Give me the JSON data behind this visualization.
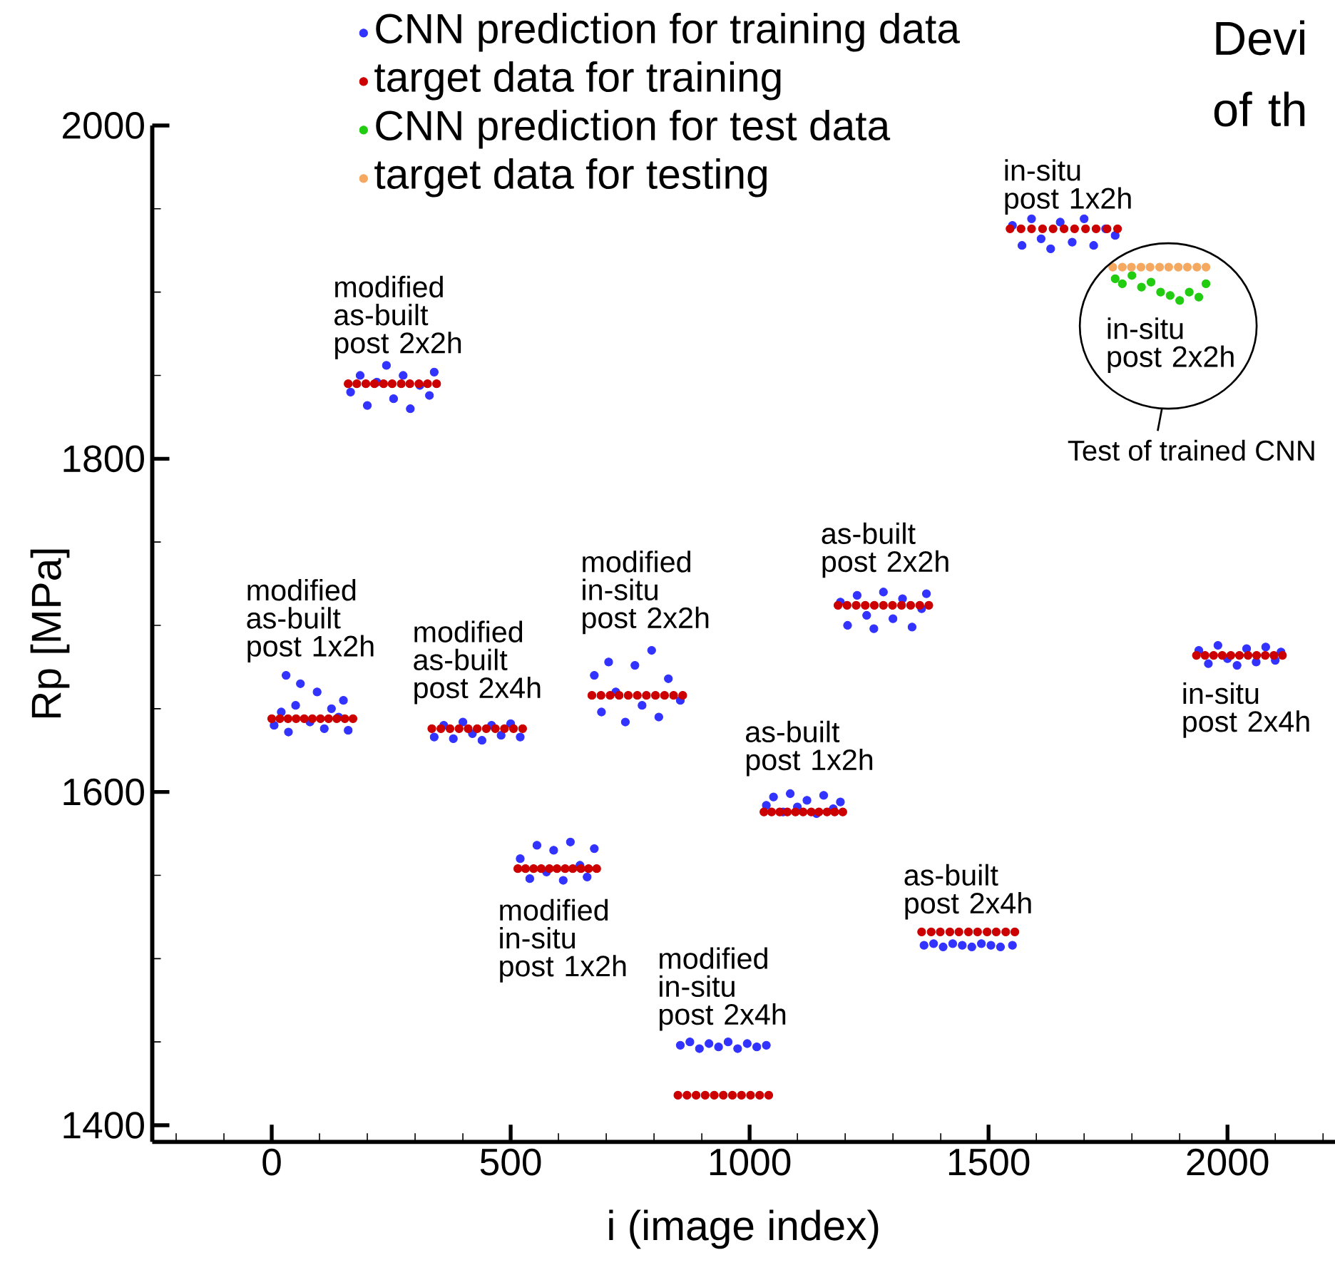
{
  "chart_data": {
    "type": "scatter",
    "title": "Devi of th",
    "xlabel": "i (image index)",
    "ylabel": "Rp [MPa]",
    "xlim": [
      -250,
      2225
    ],
    "ylim": [
      1390,
      2000
    ],
    "xticks": [
      {
        "value": -200,
        "label": null
      },
      {
        "value": -100,
        "label": null
      },
      0,
      {
        "value": 100,
        "label": null
      },
      {
        "value": 200,
        "label": null
      },
      {
        "value": 300,
        "label": null
      },
      {
        "value": 400,
        "label": null
      },
      500,
      {
        "value": 600,
        "label": null
      },
      {
        "value": 700,
        "label": null
      },
      {
        "value": 800,
        "label": null
      },
      {
        "value": 900,
        "label": null
      },
      1000,
      {
        "value": 1100,
        "label": null
      },
      {
        "value": 1200,
        "label": null
      },
      {
        "value": 1300,
        "label": null
      },
      {
        "value": 1400,
        "label": null
      },
      1500,
      {
        "value": 1600,
        "label": null
      },
      {
        "value": 1700,
        "label": null
      },
      {
        "value": 1800,
        "label": null
      },
      {
        "value": 1900,
        "label": null
      },
      2000,
      {
        "value": 2100,
        "label": null
      },
      {
        "value": 2200,
        "label": null
      }
    ],
    "yticks": [
      1400,
      {
        "value": 1450,
        "label": null
      },
      {
        "value": 1500,
        "label": null
      },
      {
        "value": 1550,
        "label": null
      },
      1600,
      {
        "value": 1650,
        "label": null
      },
      {
        "value": 1700,
        "label": null
      },
      {
        "value": 1750,
        "label": null
      },
      1800,
      {
        "value": 1850,
        "label": null
      },
      {
        "value": 1900,
        "label": null
      },
      {
        "value": 1950,
        "label": null
      },
      2000
    ],
    "legend": "top left",
    "series": [
      {
        "name": "CNN prediction for training data",
        "color": "#3333ff",
        "x": [
          5,
          20,
          35,
          50,
          60,
          80,
          95,
          110,
          125,
          140,
          160,
          30,
          150,
          165,
          185,
          200,
          220,
          240,
          255,
          275,
          290,
          310,
          330,
          340,
          340,
          360,
          380,
          400,
          420,
          440,
          460,
          480,
          500,
          520,
          520,
          540,
          555,
          575,
          590,
          610,
          625,
          645,
          660,
          675,
          675,
          690,
          705,
          720,
          740,
          760,
          775,
          795,
          810,
          830,
          855,
          855,
          875,
          895,
          915,
          935,
          955,
          975,
          995,
          1015,
          1035,
          1035,
          1050,
          1070,
          1085,
          1100,
          1120,
          1140,
          1155,
          1175,
          1190,
          1190,
          1205,
          1225,
          1245,
          1260,
          1280,
          1300,
          1320,
          1340,
          1360,
          1370,
          1365,
          1385,
          1405,
          1425,
          1445,
          1465,
          1485,
          1505,
          1525,
          1550,
          1550,
          1570,
          1590,
          1610,
          1630,
          1650,
          1675,
          1700,
          1720,
          1745,
          1765,
          1940,
          1960,
          1980,
          2000,
          2020,
          2040,
          2060,
          2080,
          2100,
          2112
        ],
        "values": [
          1640,
          1648,
          1636,
          1652,
          1665,
          1642,
          1660,
          1638,
          1650,
          1645,
          1637,
          1670,
          1655,
          1840,
          1850,
          1832,
          1846,
          1856,
          1836,
          1850,
          1830,
          1844,
          1838,
          1852,
          1633,
          1640,
          1632,
          1642,
          1635,
          1631,
          1640,
          1634,
          1641,
          1633,
          1560,
          1548,
          1568,
          1552,
          1565,
          1547,
          1570,
          1556,
          1549,
          1566,
          1670,
          1648,
          1678,
          1660,
          1642,
          1676,
          1652,
          1685,
          1645,
          1668,
          1655,
          1448,
          1450,
          1446,
          1449,
          1447,
          1450,
          1446,
          1449,
          1447,
          1448,
          1592,
          1597,
          1588,
          1599,
          1591,
          1595,
          1587,
          1598,
          1590,
          1594,
          1714,
          1700,
          1718,
          1706,
          1698,
          1720,
          1704,
          1716,
          1699,
          1710,
          1719,
          1508,
          1509,
          1507,
          1509,
          1508,
          1507,
          1509,
          1508,
          1507,
          1508,
          1940,
          1928,
          1944,
          1932,
          1926,
          1942,
          1930,
          1944,
          1928,
          1938,
          1934,
          1685,
          1677,
          1688,
          1680,
          1676,
          1686,
          1678,
          1687,
          1679,
          1684
        ]
      },
      {
        "name": "target data for training",
        "color": "#cc0000",
        "x": [
          0,
          17,
          34,
          51,
          68,
          85,
          102,
          119,
          136,
          153,
          170,
          160,
          178,
          197,
          215,
          234,
          252,
          271,
          289,
          308,
          326,
          345,
          335,
          354,
          373,
          392,
          411,
          430,
          449,
          468,
          487,
          506,
          525,
          515,
          531,
          548,
          564,
          581,
          597,
          614,
          630,
          647,
          663,
          680,
          670,
          689,
          708,
          727,
          746,
          765,
          784,
          803,
          822,
          841,
          860,
          850,
          869,
          888,
          907,
          926,
          945,
          964,
          983,
          1002,
          1021,
          1040,
          1030,
          1046,
          1063,
          1079,
          1096,
          1112,
          1129,
          1145,
          1162,
          1178,
          1195,
          1185,
          1204,
          1223,
          1242,
          1261,
          1280,
          1299,
          1318,
          1337,
          1356,
          1375,
          1360,
          1380,
          1399,
          1419,
          1438,
          1458,
          1477,
          1497,
          1516,
          1536,
          1555,
          1545,
          1568,
          1590,
          1613,
          1635,
          1658,
          1680,
          1703,
          1725,
          1748,
          1770,
          1935,
          1953,
          1971,
          1989,
          2007,
          2025,
          2043,
          2061,
          2079,
          2097,
          2115
        ],
        "values": [
          1644,
          1644,
          1644,
          1644,
          1644,
          1644,
          1644,
          1644,
          1644,
          1644,
          1644,
          1845,
          1845,
          1845,
          1845,
          1845,
          1845,
          1845,
          1845,
          1845,
          1845,
          1845,
          1638,
          1638,
          1638,
          1638,
          1638,
          1638,
          1638,
          1638,
          1638,
          1638,
          1638,
          1554,
          1554,
          1554,
          1554,
          1554,
          1554,
          1554,
          1554,
          1554,
          1554,
          1554,
          1658,
          1658,
          1658,
          1658,
          1658,
          1658,
          1658,
          1658,
          1658,
          1658,
          1658,
          1418,
          1418,
          1418,
          1418,
          1418,
          1418,
          1418,
          1418,
          1418,
          1418,
          1418,
          1588,
          1588,
          1588,
          1588,
          1588,
          1588,
          1588,
          1588,
          1588,
          1588,
          1588,
          1712,
          1712,
          1712,
          1712,
          1712,
          1712,
          1712,
          1712,
          1712,
          1712,
          1712,
          1516,
          1516,
          1516,
          1516,
          1516,
          1516,
          1516,
          1516,
          1516,
          1516,
          1516,
          1938,
          1938,
          1938,
          1938,
          1938,
          1938,
          1938,
          1938,
          1938,
          1938,
          1938,
          1682,
          1682,
          1682,
          1682,
          1682,
          1682,
          1682,
          1682,
          1682,
          1682,
          1682
        ]
      },
      {
        "name": "CNN prediction for test data",
        "color": "#22cc11",
        "x": [
          1765,
          1780,
          1800,
          1820,
          1840,
          1860,
          1880,
          1900,
          1920,
          1940,
          1955
        ],
        "values": [
          1908,
          1905,
          1910,
          1903,
          1906,
          1900,
          1898,
          1895,
          1900,
          1897,
          1905
        ]
      },
      {
        "name": "target data for testing",
        "color": "#f5a860",
        "x": [
          1760,
          1780,
          1799,
          1819,
          1838,
          1858,
          1877,
          1897,
          1916,
          1936,
          1955
        ],
        "values": [
          1915,
          1915,
          1915,
          1915,
          1915,
          1915,
          1915,
          1915,
          1915,
          1915,
          1915
        ]
      }
    ],
    "annotations": [
      "modified as-built post 1x2h",
      "modified as-built post 2x2h",
      "modified as-built post 2x4h",
      "modified in-situ post 1x2h",
      "modified in-situ post 2x2h",
      "modified in-situ post 2x4h",
      "as-built post 1x2h",
      "as-built post 2x2h",
      "as-built post 2x4h",
      "in-situ post 1x2h",
      "in-situ post 2x2h",
      "in-situ post 2x4h",
      "Test of trained CNN"
    ]
  }
}
